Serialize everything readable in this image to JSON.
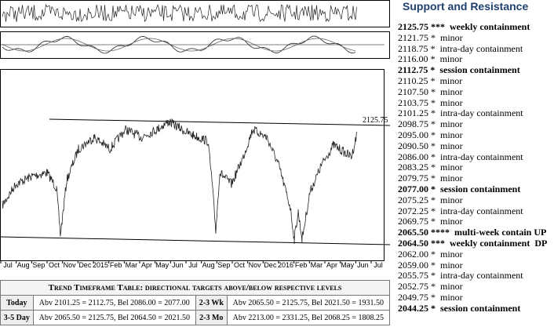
{
  "chart": {
    "x_labels": [
      "Jul",
      "Aug",
      "Sep",
      "Oct",
      "Nov",
      "Dec",
      "2015",
      "Feb",
      "Mar",
      "Apr",
      "May",
      "Jun",
      "Jul",
      "Aug",
      "Sep",
      "Oct",
      "Nov",
      "Dec",
      "2016",
      "Feb",
      "Mar",
      "Apr",
      "May",
      "Jun",
      "Jul"
    ],
    "annotation": "2125.75"
  },
  "levels": {
    "title": "Support and Resistance",
    "rows": [
      {
        "price": "2125.75",
        "stars": "***",
        "note": "weekly containment",
        "bold": true
      },
      {
        "price": "2121.75",
        "stars": "*",
        "note": "minor",
        "bold": false
      },
      {
        "price": "2118.75",
        "stars": "*",
        "note": "intra-day containment",
        "bold": false
      },
      {
        "price": "2116.00",
        "stars": "*",
        "note": "minor",
        "bold": false
      },
      {
        "price": "2112.75",
        "stars": "*",
        "note": "session containment",
        "bold": true
      },
      {
        "price": "2110.25",
        "stars": "*",
        "note": "minor",
        "bold": false
      },
      {
        "price": "2107.50",
        "stars": "*",
        "note": "minor",
        "bold": false
      },
      {
        "price": "2103.75",
        "stars": "*",
        "note": "minor",
        "bold": false
      },
      {
        "price": "2101.25",
        "stars": "*",
        "note": "intra-day containment",
        "bold": false
      },
      {
        "price": "2098.75",
        "stars": "*",
        "note": "minor",
        "bold": false
      },
      {
        "price": "2095.00",
        "stars": "*",
        "note": "minor",
        "bold": false
      },
      {
        "price": "2090.50",
        "stars": "*",
        "note": "minor",
        "bold": false
      },
      {
        "price": "2086.00",
        "stars": "*",
        "note": "intra-day containment",
        "bold": false
      },
      {
        "price": "2083.25",
        "stars": "*",
        "note": "minor",
        "bold": false
      },
      {
        "price": "2079.75",
        "stars": "*",
        "note": "minor",
        "bold": false
      },
      {
        "price": "2077.00",
        "stars": "*",
        "note": "session containment",
        "bold": true
      },
      {
        "price": "2075.25",
        "stars": "*",
        "note": "minor",
        "bold": false
      },
      {
        "price": "2072.25",
        "stars": "*",
        "note": "intra-day containment",
        "bold": false
      },
      {
        "price": "2069.75",
        "stars": "*",
        "note": "minor",
        "bold": false
      },
      {
        "price": "2065.50",
        "stars": "****",
        "note": "multi-week contain UP",
        "bold": true
      },
      {
        "price": "2064.50",
        "stars": "***",
        "note": "weekly containment  DP",
        "bold": true
      },
      {
        "price": "2062.00",
        "stars": "*",
        "note": "minor",
        "bold": false
      },
      {
        "price": "2059.00",
        "stars": "*",
        "note": "minor",
        "bold": false
      },
      {
        "price": "2055.75",
        "stars": "*",
        "note": "intra-day containment",
        "bold": false
      },
      {
        "price": "2052.75",
        "stars": "*",
        "note": "minor",
        "bold": false
      },
      {
        "price": "2049.75",
        "stars": "*",
        "note": "minor",
        "bold": false
      },
      {
        "price": "2044.25",
        "stars": "*",
        "note": "session containment",
        "bold": true
      }
    ]
  },
  "table": {
    "title": "Trend Timeframe Table: directional targets above/below respective levels",
    "rows": [
      [
        "Today",
        "Abv 2101.25 = 2112.75, Bel 2086.00 = 2077.00",
        "2-3 Wk",
        "Abv 2065.50 = 2125.75, Bel 2021.50 = 1931.50"
      ],
      [
        "3-5 Day",
        "Abv 2065.50 = 2125.75, Bel 2064.50 = 2021.50",
        "2-3 Mo",
        "Abv 2213.00 = 2331.25, Bel 2068.25 = 1808.25"
      ]
    ]
  }
}
